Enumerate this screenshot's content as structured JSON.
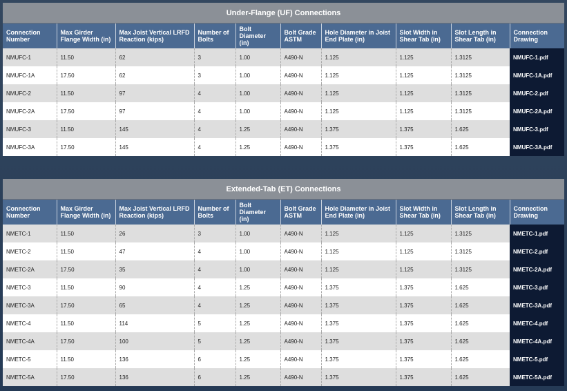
{
  "tables": [
    {
      "title": "Under-Flange (UF) Connections",
      "headers": [
        "Connection Number",
        "Max Girder Flange Width (in)",
        "Max Joist Vertical LRFD Reaction (kips)",
        "Number of Bolts",
        "Bolt Diameter (in)",
        "Bolt Grade ASTM",
        "Hole Diameter in Joist End Plate (in)",
        "Slot Width in Shear Tab (in)",
        "Slot Length in Shear Tab (in)",
        "Connection Drawing"
      ],
      "rows": [
        [
          "NMUFC-1",
          "11.50",
          "62",
          "3",
          "1.00",
          "A490-N",
          "1.125",
          "1.125",
          "1.3125",
          "NMUFC-1.pdf"
        ],
        [
          "NMUFC-1A",
          "17.50",
          "62",
          "3",
          "1.00",
          "A490-N",
          "1.125",
          "1.125",
          "1.3125",
          "NMUFC-1A.pdf"
        ],
        [
          "NMUFC-2",
          "11.50",
          "97",
          "4",
          "1.00",
          "A490-N",
          "1.125",
          "1.125",
          "1.3125",
          "NMUFC-2.pdf"
        ],
        [
          "NMUFC-2A",
          "17.50",
          "97",
          "4",
          "1.00",
          "A490-N",
          "1.125",
          "1.125",
          "1.3125",
          "NMUFC-2A.pdf"
        ],
        [
          "NMUFC-3",
          "11.50",
          "145",
          "4",
          "1.25",
          "A490-N",
          "1.375",
          "1.375",
          "1.625",
          "NMUFC-3.pdf"
        ],
        [
          "NMUFC-3A",
          "17.50",
          "145",
          "4",
          "1.25",
          "A490-N",
          "1.375",
          "1.375",
          "1.625",
          "NMUFC-3A.pdf"
        ]
      ]
    },
    {
      "title": "Extended-Tab (ET) Connections",
      "headers": [
        "Connection Number",
        "Max Girder Flange Width (in)",
        "Max Joist Vertical LRFD Reaction (kips)",
        "Number of Bolts",
        "Bolt Diameter (in)",
        "Bolt Grade ASTM",
        "Hole Diameter in Joist End Plate (in)",
        "Slot Width in Shear Tab (in)",
        "Slot Length in Shear Tab (in)",
        "Connection Drawing"
      ],
      "rows": [
        [
          "NMETC-1",
          "11.50",
          "26",
          "3",
          "1.00",
          "A490-N",
          "1.125",
          "1.125",
          "1.3125",
          "NMETC-1.pdf"
        ],
        [
          "NMETC-2",
          "11.50",
          "47",
          "4",
          "1.00",
          "A490-N",
          "1.125",
          "1.125",
          "1.3125",
          "NMETC-2.pdf"
        ],
        [
          "NMETC-2A",
          "17.50",
          "35",
          "4",
          "1.00",
          "A490-N",
          "1.125",
          "1.125",
          "1.3125",
          "NMETC-2A.pdf"
        ],
        [
          "NMETC-3",
          "11.50",
          "90",
          "4",
          "1.25",
          "A490-N",
          "1.375",
          "1.375",
          "1.625",
          "NMETC-3.pdf"
        ],
        [
          "NMETC-3A",
          "17.50",
          "65",
          "4",
          "1.25",
          "A490-N",
          "1.375",
          "1.375",
          "1.625",
          "NMETC-3A.pdf"
        ],
        [
          "NMETC-4",
          "11.50",
          "114",
          "5",
          "1.25",
          "A490-N",
          "1.375",
          "1.375",
          "1.625",
          "NMETC-4.pdf"
        ],
        [
          "NMETC-4A",
          "17.50",
          "100",
          "5",
          "1.25",
          "A490-N",
          "1.375",
          "1.375",
          "1.625",
          "NMETC-4A.pdf"
        ],
        [
          "NMETC-5",
          "11.50",
          "136",
          "6",
          "1.25",
          "A490-N",
          "1.375",
          "1.375",
          "1.625",
          "NMETC-5.pdf"
        ],
        [
          "NMETC-5A",
          "17.50",
          "136",
          "6",
          "1.25",
          "A490-N",
          "1.375",
          "1.375",
          "1.625",
          "NMETC-5A.pdf"
        ]
      ]
    }
  ]
}
